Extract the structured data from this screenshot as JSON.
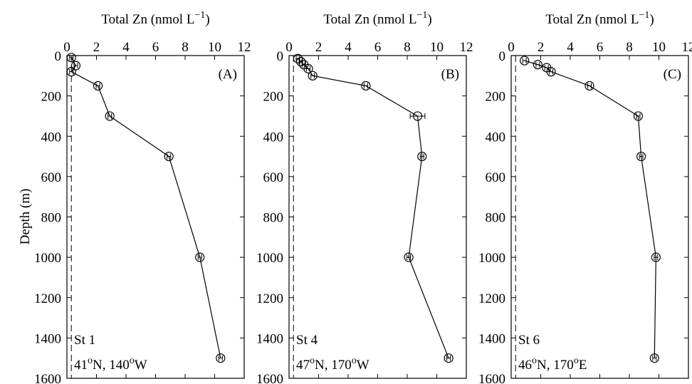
{
  "ylabel": "Depth (m)",
  "chart_data": [
    {
      "type": "line",
      "panel_label": "(A)",
      "xlabel": {
        "base": "Total Zn (nmol L",
        "sup": "−1",
        "close": ")"
      },
      "xlim": [
        0,
        12
      ],
      "ylim": [
        0,
        1600
      ],
      "y_inverted": true,
      "x_axis_position": "top",
      "xticks": [
        0,
        2,
        4,
        6,
        8,
        10,
        12
      ],
      "yticks": [
        0,
        200,
        400,
        600,
        800,
        1000,
        1200,
        1400,
        1600
      ],
      "station": {
        "name": "St 1",
        "lat": "41",
        "lat_dir": "N, 140",
        "lon_dir": "W"
      },
      "reference_line_x": 0.3,
      "series": [
        {
          "points": [
            {
              "zn": 0.3,
              "depth": 10
            },
            {
              "zn": 0.6,
              "depth": 50
            },
            {
              "zn": 0.3,
              "depth": 80
            },
            {
              "zn": 2.1,
              "depth": 150
            },
            {
              "zn": 2.9,
              "depth": 300
            },
            {
              "zn": 6.9,
              "depth": 500
            },
            {
              "zn": 9.0,
              "depth": 1000
            },
            {
              "zn": 10.4,
              "depth": 1500
            }
          ]
        }
      ]
    },
    {
      "type": "line",
      "panel_label": "(B)",
      "xlabel": {
        "base": "Total Zn (nmol L",
        "sup": "−1",
        "close": ")"
      },
      "xlim": [
        0,
        12
      ],
      "ylim": [
        0,
        1600
      ],
      "y_inverted": true,
      "x_axis_position": "top",
      "xticks": [
        0,
        2,
        4,
        6,
        8,
        10,
        12
      ],
      "yticks": [
        0,
        200,
        400,
        600,
        800,
        1000,
        1200,
        1400,
        1600
      ],
      "station": {
        "name": "St 4",
        "lat": "47",
        "lat_dir": "N, 170",
        "lon_dir": "W"
      },
      "reference_line_x": 0.3,
      "series": [
        {
          "points": [
            {
              "zn": 0.6,
              "depth": 15
            },
            {
              "zn": 0.8,
              "depth": 30
            },
            {
              "zn": 1.0,
              "depth": 45
            },
            {
              "zn": 1.3,
              "depth": 65
            },
            {
              "zn": 1.6,
              "depth": 100
            },
            {
              "zn": 5.2,
              "depth": 150
            },
            {
              "zn": 8.7,
              "depth": 300,
              "xerr": 0.5
            },
            {
              "zn": 9.0,
              "depth": 500
            },
            {
              "zn": 8.1,
              "depth": 1000
            },
            {
              "zn": 10.8,
              "depth": 1500
            }
          ]
        }
      ]
    },
    {
      "type": "line",
      "panel_label": "(C)",
      "xlabel": {
        "base": "Total Zn (nmol L",
        "sup": "−1",
        "close": ")"
      },
      "xlim": [
        0,
        12
      ],
      "ylim": [
        0,
        1600
      ],
      "y_inverted": true,
      "x_axis_position": "top",
      "xticks": [
        0,
        2,
        4,
        6,
        8,
        10,
        12
      ],
      "yticks": [
        0,
        200,
        400,
        600,
        800,
        1000,
        1200,
        1400,
        1600
      ],
      "station": {
        "name": "St 6",
        "lat": "46",
        "lat_dir": "N, 170",
        "lon_dir": "E"
      },
      "reference_line_x": 0.3,
      "series": [
        {
          "points": [
            {
              "zn": 0.9,
              "depth": 25
            },
            {
              "zn": 1.8,
              "depth": 45
            },
            {
              "zn": 2.4,
              "depth": 60
            },
            {
              "zn": 2.7,
              "depth": 80
            },
            {
              "zn": 5.3,
              "depth": 150
            },
            {
              "zn": 8.6,
              "depth": 300
            },
            {
              "zn": 8.8,
              "depth": 500
            },
            {
              "zn": 9.8,
              "depth": 1000
            },
            {
              "zn": 9.7,
              "depth": 1500
            }
          ]
        }
      ]
    }
  ]
}
